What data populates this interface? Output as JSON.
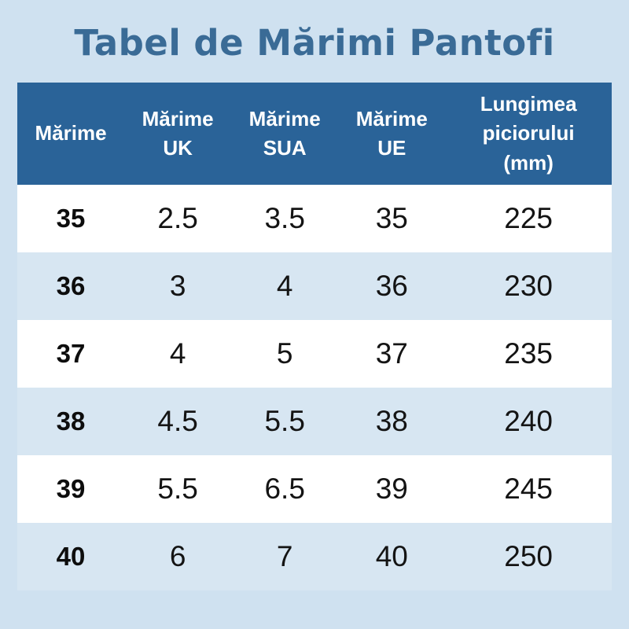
{
  "page": {
    "title": "Tabel de Mărimi Pantofi"
  },
  "colors": {
    "page_bg": "#cfe1f0",
    "title_text": "#3a6b96",
    "header_bg": "#2a6398",
    "header_text": "#ffffff",
    "row_white_bg": "#ffffff",
    "row_blue_bg": "#d7e6f2",
    "body_text": "#141414"
  },
  "table": {
    "headers": [
      "Mărime",
      "Mărime\nUK",
      "Mărime\nSUA",
      "Mărime\nUE",
      "Lungimea\npiciorului\n(mm)"
    ],
    "rows": [
      {
        "cells": [
          "35",
          "2.5",
          "3.5",
          "35",
          "225"
        ]
      },
      {
        "cells": [
          "36",
          "3",
          "4",
          "36",
          "230"
        ]
      },
      {
        "cells": [
          "37",
          "4",
          "5",
          "37",
          "235"
        ]
      },
      {
        "cells": [
          "38",
          "4.5",
          "5.5",
          "38",
          "240"
        ]
      },
      {
        "cells": [
          "39",
          "5.5",
          "6.5",
          "39",
          "245"
        ]
      },
      {
        "cells": [
          "40",
          "6",
          "7",
          "40",
          "250"
        ]
      }
    ]
  },
  "chart_data": {
    "type": "table",
    "title": "Tabel de Mărimi Pantofi",
    "columns": [
      "Mărime",
      "Mărime UK",
      "Mărime SUA",
      "Mărime UE",
      "Lungimea piciorului (mm)"
    ],
    "rows": [
      [
        "35",
        "2.5",
        "3.5",
        "35",
        "225"
      ],
      [
        "36",
        "3",
        "4",
        "36",
        "230"
      ],
      [
        "37",
        "4",
        "5",
        "37",
        "235"
      ],
      [
        "38",
        "4.5",
        "5.5",
        "38",
        "240"
      ],
      [
        "39",
        "5.5",
        "6.5",
        "39",
        "245"
      ],
      [
        "40",
        "6",
        "7",
        "40",
        "250"
      ]
    ],
    "layout": {
      "row_striping": [
        "white",
        "light-blue"
      ],
      "header_style": "dark-blue background, white bold text",
      "first_column_bold": true
    }
  }
}
